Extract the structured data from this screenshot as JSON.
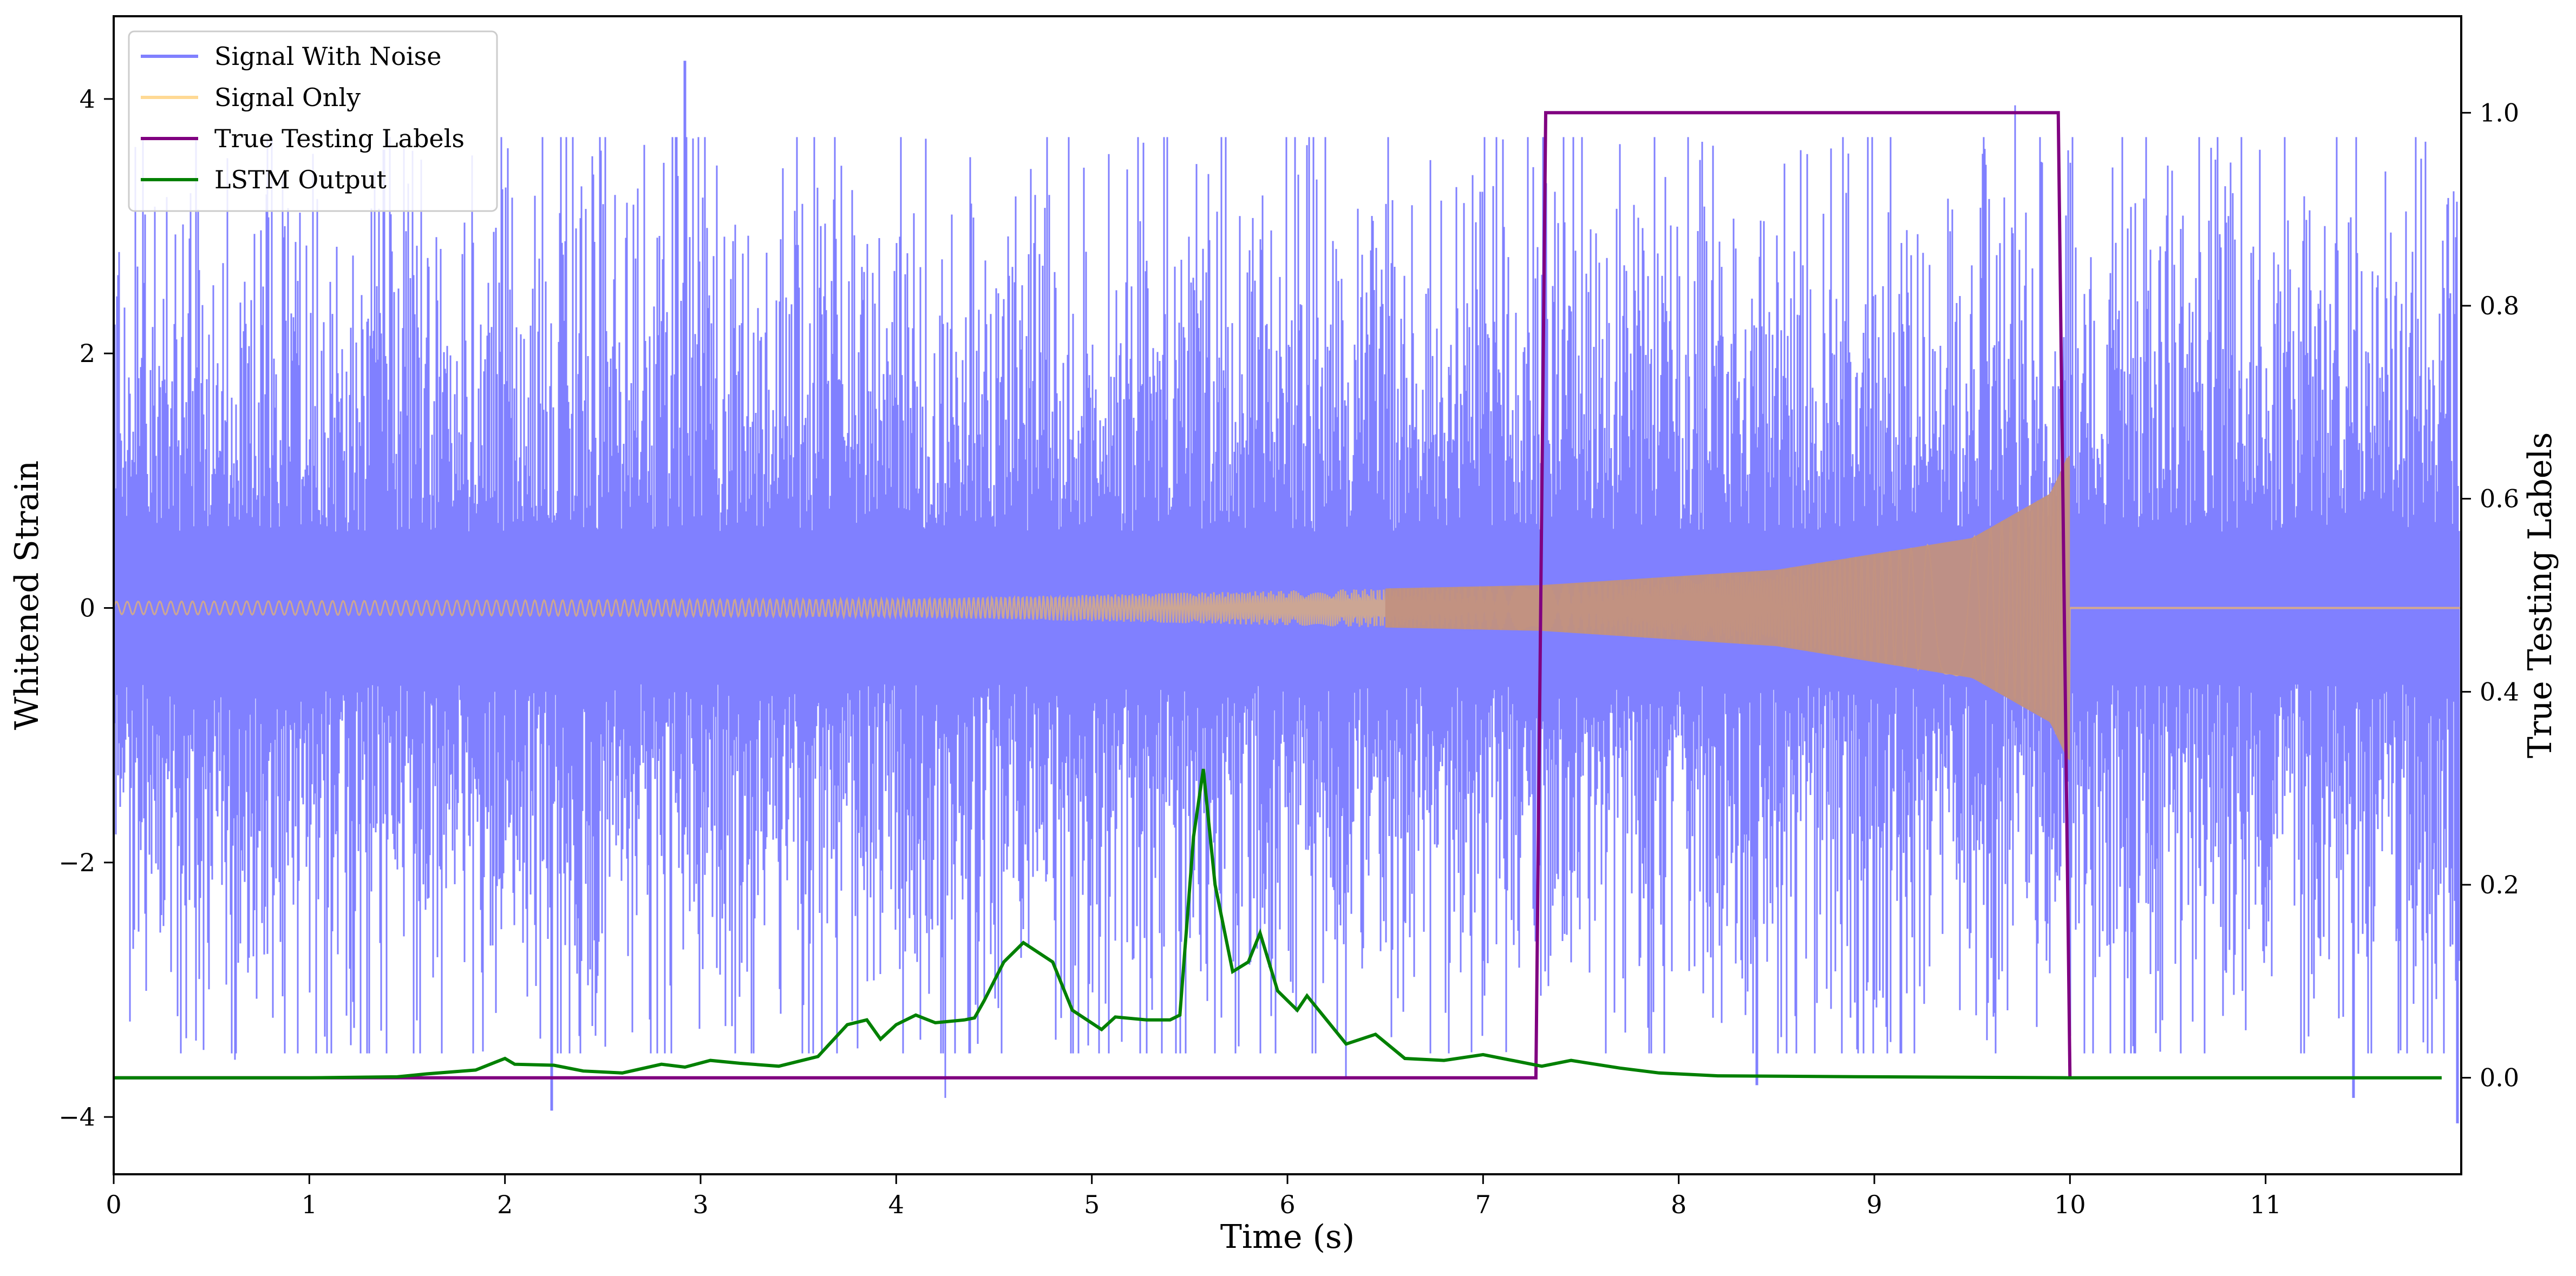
{
  "chart_data": {
    "type": "line",
    "title": "",
    "xlabel": "Time (s)",
    "ylabel": "Whitened Strain",
    "y2label": "True Testing Labels",
    "xlim": [
      0,
      12
    ],
    "ylim": [
      -4.45,
      4.65
    ],
    "y2lim": [
      -0.1,
      1.1
    ],
    "xticks": [
      0,
      1,
      2,
      3,
      4,
      5,
      6,
      7,
      8,
      9,
      10,
      11
    ],
    "yticks": [
      -4,
      -2,
      0,
      2,
      4
    ],
    "y2ticks": [
      0.0,
      0.2,
      0.4,
      0.6,
      0.8,
      1.0
    ],
    "y2tick_labels": [
      "0.0",
      "0.2",
      "0.4",
      "0.6",
      "0.8",
      "1.0"
    ],
    "grid": false,
    "legend_position": "upper-left",
    "series": [
      {
        "name": "Signal With Noise",
        "axis": "left",
        "color": "#8080ff",
        "kind": "noise",
        "typical_amplitude": 1.6,
        "peak_range": [
          -4.1,
          4.3
        ],
        "sample_spikes": [
          {
            "t": 0.62,
            "y": -3.55
          },
          {
            "t": 1.38,
            "y": 3.6
          },
          {
            "t": 2.24,
            "y": -3.95
          },
          {
            "t": 2.92,
            "y": 4.3
          },
          {
            "t": 4.25,
            "y": -3.85
          },
          {
            "t": 6.3,
            "y": -3.7
          },
          {
            "t": 8.4,
            "y": -3.75
          },
          {
            "t": 9.72,
            "y": 3.95
          },
          {
            "t": 11.45,
            "y": -3.85
          },
          {
            "t": 11.98,
            "y": -4.05
          }
        ]
      },
      {
        "name": "Signal Only",
        "axis": "left",
        "color": "#ffc04d",
        "kind": "chirp",
        "start_amplitude": 0.05,
        "amplitude_at_t": [
          {
            "t": 0,
            "a": 0.05
          },
          {
            "t": 4,
            "a": 0.07
          },
          {
            "t": 7.3,
            "a": 0.18
          },
          {
            "t": 8.5,
            "a": 0.3
          },
          {
            "t": 9.5,
            "a": 0.55
          },
          {
            "t": 9.9,
            "a": 0.9
          },
          {
            "t": 9.99,
            "a": 1.2
          }
        ],
        "merger_time": 10.0
      },
      {
        "name": "True Testing Labels",
        "axis": "right",
        "color": "#800080",
        "points": [
          [
            0,
            0
          ],
          [
            7.27,
            0
          ],
          [
            7.32,
            1
          ],
          [
            9.94,
            1
          ],
          [
            10.0,
            0
          ]
        ]
      },
      {
        "name": "LSTM Output",
        "axis": "right",
        "color": "#008000",
        "points": [
          [
            0,
            0
          ],
          [
            1.0,
            0.0
          ],
          [
            1.45,
            0.001
          ],
          [
            1.6,
            0.004
          ],
          [
            1.85,
            0.008
          ],
          [
            1.95,
            0.016
          ],
          [
            2.0,
            0.02
          ],
          [
            2.05,
            0.014
          ],
          [
            2.25,
            0.013
          ],
          [
            2.4,
            0.007
          ],
          [
            2.6,
            0.005
          ],
          [
            2.8,
            0.014
          ],
          [
            2.92,
            0.011
          ],
          [
            3.05,
            0.018
          ],
          [
            3.2,
            0.015
          ],
          [
            3.4,
            0.012
          ],
          [
            3.6,
            0.022
          ],
          [
            3.75,
            0.055
          ],
          [
            3.85,
            0.06
          ],
          [
            3.92,
            0.04
          ],
          [
            4.0,
            0.055
          ],
          [
            4.1,
            0.065
          ],
          [
            4.2,
            0.057
          ],
          [
            4.35,
            0.06
          ],
          [
            4.4,
            0.062
          ],
          [
            4.45,
            0.08
          ],
          [
            4.55,
            0.12
          ],
          [
            4.65,
            0.14
          ],
          [
            4.8,
            0.12
          ],
          [
            4.9,
            0.07
          ],
          [
            5.05,
            0.05
          ],
          [
            5.12,
            0.063
          ],
          [
            5.28,
            0.06
          ],
          [
            5.4,
            0.06
          ],
          [
            5.45,
            0.065
          ],
          [
            5.52,
            0.25
          ],
          [
            5.57,
            0.32
          ],
          [
            5.63,
            0.2
          ],
          [
            5.72,
            0.11
          ],
          [
            5.8,
            0.12
          ],
          [
            5.86,
            0.15
          ],
          [
            5.95,
            0.09
          ],
          [
            6.05,
            0.07
          ],
          [
            6.1,
            0.085
          ],
          [
            6.2,
            0.06
          ],
          [
            6.3,
            0.035
          ],
          [
            6.45,
            0.045
          ],
          [
            6.6,
            0.02
          ],
          [
            6.8,
            0.018
          ],
          [
            7.0,
            0.024
          ],
          [
            7.3,
            0.012
          ],
          [
            7.45,
            0.018
          ],
          [
            7.7,
            0.01
          ],
          [
            7.9,
            0.005
          ],
          [
            8.2,
            0.002
          ],
          [
            9.0,
            0.001
          ],
          [
            10.0,
            0.0
          ],
          [
            11.9,
            0.0
          ]
        ]
      }
    ]
  }
}
